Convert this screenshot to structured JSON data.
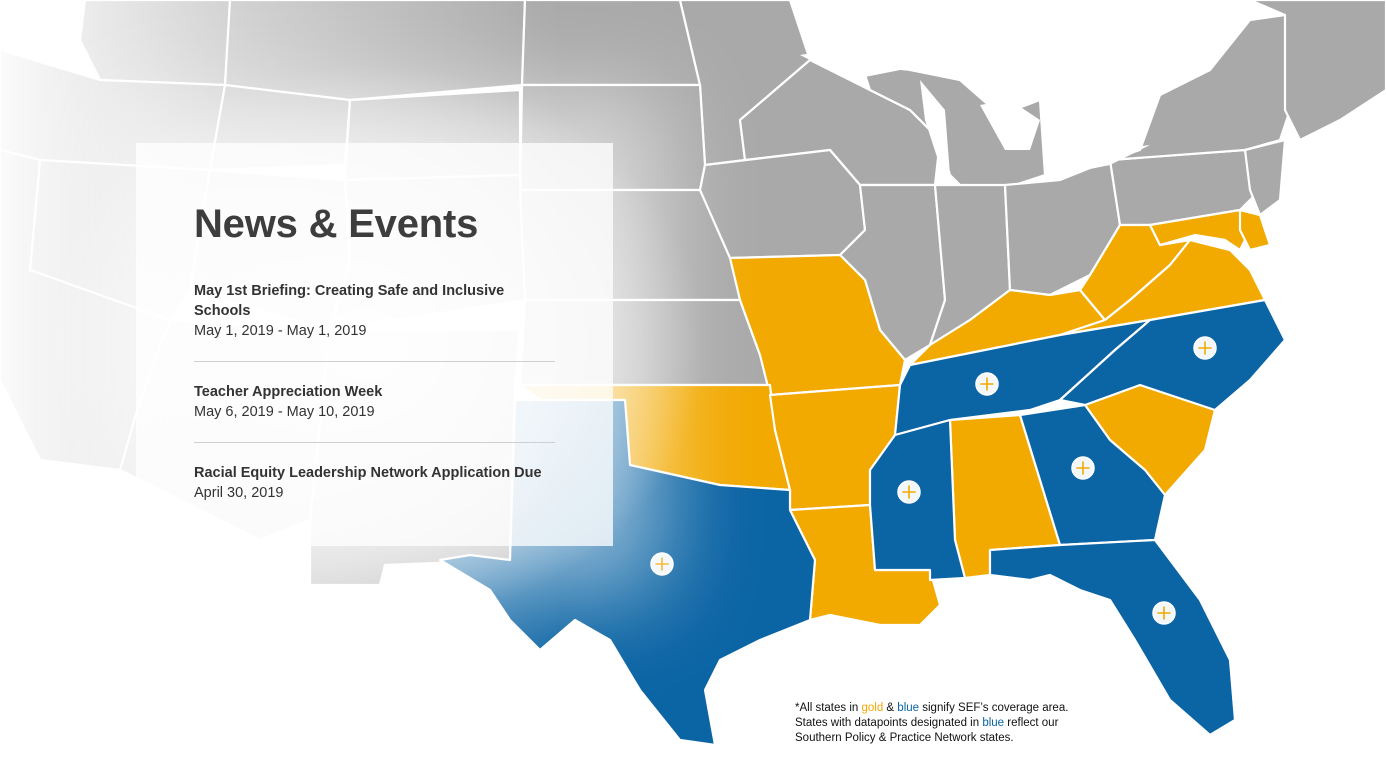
{
  "news": {
    "heading": "News & Events",
    "events": [
      {
        "title": "May 1st Briefing: Creating Safe and Inclusive Schools",
        "date": "May 1, 2019 - May 1, 2019"
      },
      {
        "title": "Teacher Appreciation Week",
        "date": "May 6, 2019 - May 10, 2019"
      },
      {
        "title": "Racial Equity Leadership Network Application Due",
        "date": "April 30, 2019"
      }
    ]
  },
  "footnote": {
    "line1_prefix": "*All states in ",
    "gold_word": "gold",
    "amp": " & ",
    "blue_word": "blue",
    "line1_suffix": " signify SEF’s coverage area.",
    "line2_prefix": "States with datapoints designated in ",
    "blue_word_2": "blue",
    "line2_suffix": " reflect our",
    "line3": "Southern Policy & Practice Network states."
  },
  "map": {
    "colors": {
      "gold": "#f2a900",
      "blue": "#0b64a4",
      "gray": "#a9a9a9",
      "border": "#ffffff",
      "marker_plus": "#f2a900"
    },
    "states_gold": [
      "Missouri",
      "Kentucky",
      "Virginia",
      "West Virginia",
      "Maryland",
      "Delaware",
      "Oklahoma",
      "Arkansas",
      "Louisiana",
      "Alabama",
      "South Carolina"
    ],
    "states_blue": [
      "Texas",
      "Tennessee",
      "North Carolina",
      "Mississippi",
      "Georgia",
      "Florida"
    ],
    "marker_icon": "plus-icon"
  }
}
